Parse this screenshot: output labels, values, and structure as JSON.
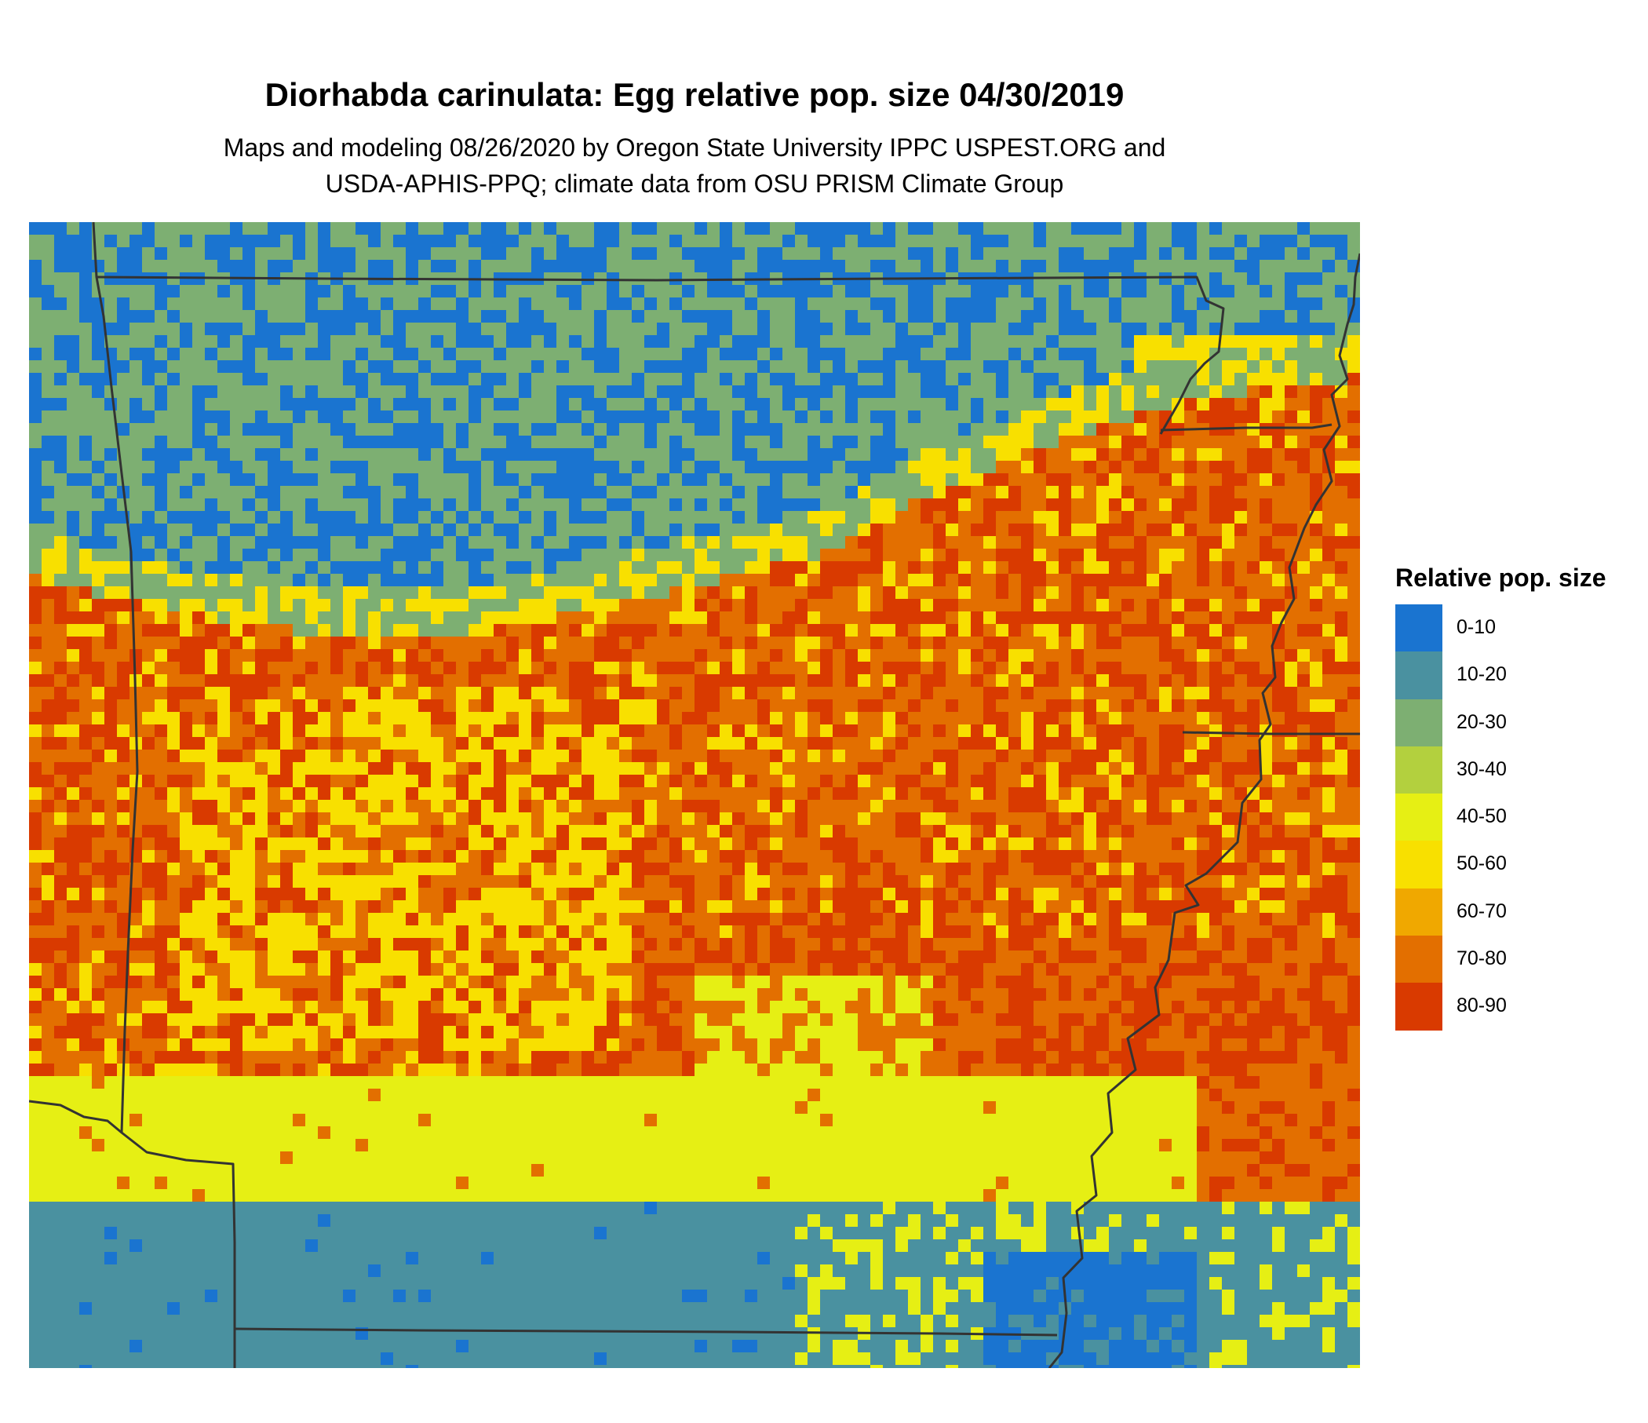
{
  "header": {
    "title": "Diorhabda carinulata: Egg relative pop. size 04/30/2019",
    "subtitle_line1": "Maps and modeling 08/26/2020 by Oregon State University IPPC USPEST.ORG and",
    "subtitle_line2": "USDA-APHIS-PPQ; climate data from OSU PRISM Climate Group"
  },
  "legend": {
    "title": "Relative pop. size",
    "items": [
      {
        "label": "0-10",
        "color": "#1a74d0"
      },
      {
        "label": "10-20",
        "color": "#4a91a0"
      },
      {
        "label": "20-30",
        "color": "#7daf72"
      },
      {
        "label": "30-40",
        "color": "#b3d03e"
      },
      {
        "label": "40-50",
        "color": "#e6ef14"
      },
      {
        "label": "50-60",
        "color": "#f8e000"
      },
      {
        "label": "60-70",
        "color": "#f0a800"
      },
      {
        "label": "70-80",
        "color": "#e36f00"
      },
      {
        "label": "80-90",
        "color": "#d93a00"
      }
    ]
  }
}
